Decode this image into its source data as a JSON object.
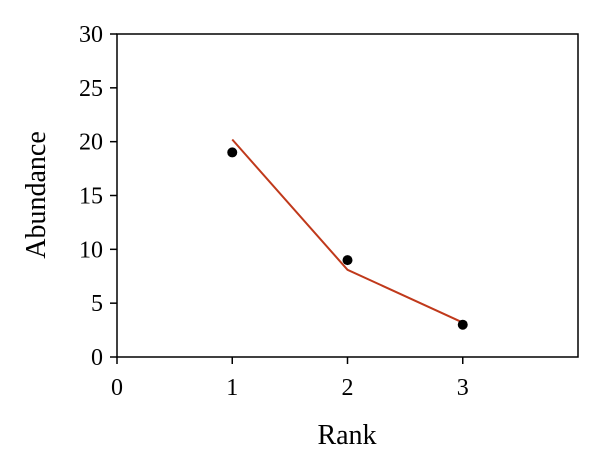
{
  "chart_data": {
    "type": "scatter",
    "x_label": "Rank",
    "y_label": "Abundance",
    "x": [
      1,
      2,
      3
    ],
    "series": [
      {
        "type": "scatter",
        "color": "#000000",
        "values": [
          19,
          9,
          3
        ]
      },
      {
        "type": "line",
        "color": "#c0391b",
        "values": [
          20.2,
          8.1,
          3.2
        ]
      }
    ],
    "xlim": [
      0,
      4
    ],
    "xticks": [
      0,
      1,
      2,
      3
    ],
    "ylim": [
      0,
      30
    ],
    "yticks": [
      0,
      5,
      10,
      15,
      20,
      25,
      30
    ],
    "grid": false
  }
}
